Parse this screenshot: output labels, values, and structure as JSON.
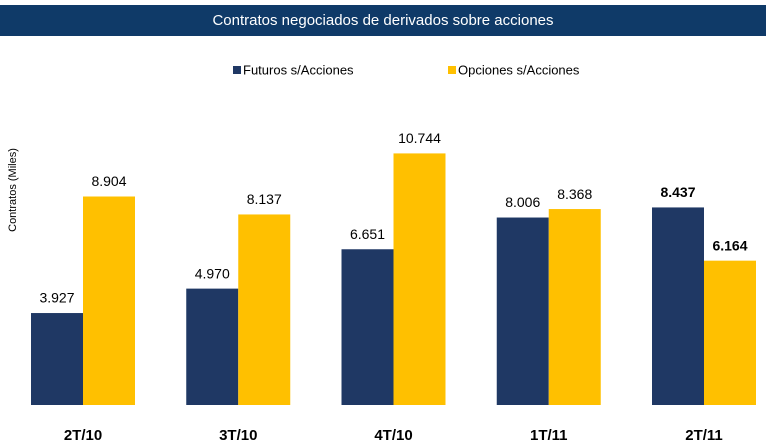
{
  "chart_data": {
    "type": "bar",
    "title": "Contratos negociados de derivados sobre acciones",
    "y_label": "Contratos (Miles)",
    "categories": [
      "2T/10",
      "3T/10",
      "4T/10",
      "1T/11",
      "2T/11"
    ],
    "series": [
      {
        "name": "Futuros s/Acciones",
        "color": "#1f3864",
        "values": [
          3.927,
          4.97,
          6.651,
          8.006,
          8.437
        ],
        "value_labels": [
          "3.927",
          "4.970",
          "6.651",
          "8.006",
          "8.437"
        ]
      },
      {
        "name": "Opciones s/Acciones",
        "color": "#ffc000",
        "values": [
          8.904,
          8.137,
          10.744,
          8.368,
          6.164
        ],
        "value_labels": [
          "8.904",
          "8.137",
          "10.744",
          "8.368",
          "6.164"
        ]
      }
    ],
    "ylim": [
      0,
      12
    ]
  }
}
